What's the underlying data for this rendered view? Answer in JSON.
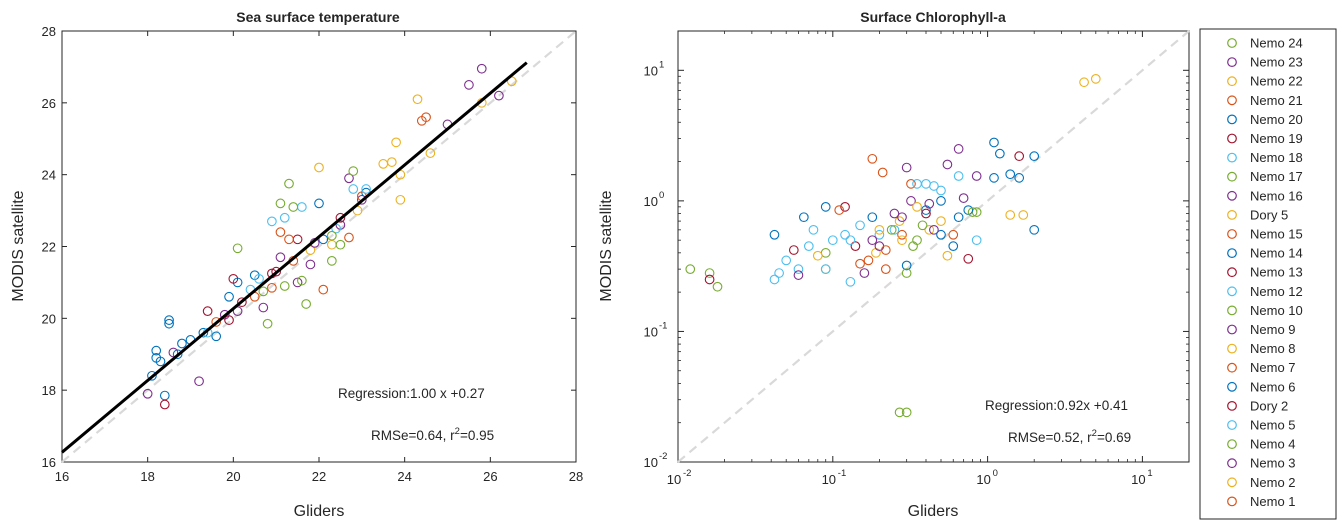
{
  "chart_data": [
    {
      "type": "scatter",
      "title": "Sea surface temperature",
      "xlabel": "Gliders",
      "ylabel": "MODIS satellite",
      "xlim": [
        16,
        28
      ],
      "ylim": [
        16,
        28
      ],
      "xticks": [
        "16",
        "18",
        "20",
        "22",
        "24",
        "26",
        "28"
      ],
      "yticks": [
        "16",
        "18",
        "20",
        "22",
        "24",
        "26",
        "28"
      ],
      "grid": false,
      "one_to_one_line": true,
      "regression_line": {
        "slope": 1.0,
        "intercept": 0.27,
        "x_range": [
          16,
          26.85
        ]
      },
      "annotations": [
        "Regression:1.00 x +0.27",
        "RMSe=0.64, r",
        "2",
        "=0.95"
      ],
      "points": [
        {
          "g": "Nemo 20",
          "x": 18.1,
          "y": 18.4
        },
        {
          "g": "Nemo 20",
          "x": 18.2,
          "y": 19.1
        },
        {
          "g": "Nemo 20",
          "x": 18.2,
          "y": 18.9
        },
        {
          "g": "Nemo 20",
          "x": 18.5,
          "y": 19.95
        },
        {
          "g": "Nemo 20",
          "x": 18.5,
          "y": 19.85
        },
        {
          "g": "Nemo 20",
          "x": 18.4,
          "y": 17.85
        },
        {
          "g": "Nemo 20",
          "x": 18.8,
          "y": 19.3
        },
        {
          "g": "Nemo 20",
          "x": 19.0,
          "y": 19.4
        },
        {
          "g": "Nemo 20",
          "x": 19.9,
          "y": 20.6
        },
        {
          "g": "Nemo 20",
          "x": 20.1,
          "y": 21.0
        },
        {
          "g": "Nemo 20",
          "x": 22.1,
          "y": 22.2
        },
        {
          "g": "Nemo 20",
          "x": 22.0,
          "y": 23.2
        },
        {
          "g": "Nemo 20",
          "x": 23.1,
          "y": 23.5
        },
        {
          "g": "Nemo 14",
          "x": 18.7,
          "y": 19.0
        },
        {
          "g": "Nemo 14",
          "x": 19.3,
          "y": 19.6
        },
        {
          "g": "Nemo 6",
          "x": 18.3,
          "y": 18.8
        },
        {
          "g": "Nemo 6",
          "x": 19.6,
          "y": 19.5
        },
        {
          "g": "Nemo 6",
          "x": 20.5,
          "y": 21.2
        },
        {
          "g": "Nemo 16",
          "x": 18.0,
          "y": 17.9
        },
        {
          "g": "Nemo 16",
          "x": 18.6,
          "y": 19.05
        },
        {
          "g": "Nemo 16",
          "x": 19.2,
          "y": 18.25
        },
        {
          "g": "Nemo 16",
          "x": 20.7,
          "y": 20.3
        },
        {
          "g": "Nemo 16",
          "x": 21.5,
          "y": 21.0
        },
        {
          "g": "Nemo 16",
          "x": 22.5,
          "y": 22.6
        },
        {
          "g": "Nemo 16",
          "x": 25.0,
          "y": 25.4
        },
        {
          "g": "Nemo 16",
          "x": 25.5,
          "y": 26.5
        },
        {
          "g": "Nemo 16",
          "x": 25.8,
          "y": 26.95
        },
        {
          "g": "Nemo 16",
          "x": 26.2,
          "y": 26.2
        },
        {
          "g": "Nemo 16",
          "x": 23.0,
          "y": 23.3
        },
        {
          "g": "Nemo 16",
          "x": 22.7,
          "y": 23.9
        },
        {
          "g": "Nemo 23",
          "x": 21.8,
          "y": 21.5
        },
        {
          "g": "Nemo 23",
          "x": 19.8,
          "y": 20.1
        },
        {
          "g": "Nemo 9",
          "x": 21.1,
          "y": 21.7
        },
        {
          "g": "Nemo 13",
          "x": 18.4,
          "y": 17.6
        },
        {
          "g": "Nemo 13",
          "x": 19.4,
          "y": 20.2
        },
        {
          "g": "Nemo 13",
          "x": 20.0,
          "y": 21.1
        },
        {
          "g": "Nemo 13",
          "x": 21.0,
          "y": 21.3
        },
        {
          "g": "Nemo 13",
          "x": 21.5,
          "y": 22.2
        },
        {
          "g": "Nemo 13",
          "x": 22.5,
          "y": 22.8
        },
        {
          "g": "Dory 2",
          "x": 20.2,
          "y": 20.45
        },
        {
          "g": "Nemo 19",
          "x": 19.9,
          "y": 19.95
        },
        {
          "g": "Nemo 19",
          "x": 20.9,
          "y": 21.25
        },
        {
          "g": "Nemo 21",
          "x": 19.6,
          "y": 19.9
        },
        {
          "g": "Nemo 21",
          "x": 20.5,
          "y": 20.6
        },
        {
          "g": "Nemo 21",
          "x": 21.3,
          "y": 22.2
        },
        {
          "g": "Nemo 21",
          "x": 22.1,
          "y": 20.8
        },
        {
          "g": "Nemo 21",
          "x": 24.5,
          "y": 25.6
        },
        {
          "g": "Nemo 15",
          "x": 21.4,
          "y": 21.6
        },
        {
          "g": "Nemo 15",
          "x": 22.7,
          "y": 22.25
        },
        {
          "g": "Nemo 15",
          "x": 24.4,
          "y": 25.5
        },
        {
          "g": "Nemo 7",
          "x": 20.9,
          "y": 20.85
        },
        {
          "g": "Nemo 7",
          "x": 23.0,
          "y": 23.4
        },
        {
          "g": "Nemo 1",
          "x": 21.1,
          "y": 22.4
        },
        {
          "g": "Nemo 22",
          "x": 22.0,
          "y": 24.2
        },
        {
          "g": "Nemo 22",
          "x": 23.5,
          "y": 24.3
        },
        {
          "g": "Nemo 22",
          "x": 24.3,
          "y": 26.1
        },
        {
          "g": "Nemo 22",
          "x": 25.8,
          "y": 26.0
        },
        {
          "g": "Nemo 22",
          "x": 23.9,
          "y": 23.3
        },
        {
          "g": "Nemo 22",
          "x": 23.8,
          "y": 24.9
        },
        {
          "g": "Nemo 22",
          "x": 24.6,
          "y": 24.6
        },
        {
          "g": "Nemo 8",
          "x": 23.7,
          "y": 24.35
        },
        {
          "g": "Nemo 8",
          "x": 22.3,
          "y": 22.05
        },
        {
          "g": "Nemo 8",
          "x": 26.5,
          "y": 26.6
        },
        {
          "g": "Nemo 2",
          "x": 21.8,
          "y": 21.9
        },
        {
          "g": "Nemo 2",
          "x": 23.9,
          "y": 24.0
        },
        {
          "g": "Dory 5",
          "x": 22.9,
          "y": 23.0
        },
        {
          "g": "Nemo 18",
          "x": 20.6,
          "y": 21.1
        },
        {
          "g": "Nemo 18",
          "x": 20.9,
          "y": 22.7
        },
        {
          "g": "Nemo 18",
          "x": 21.6,
          "y": 23.1
        },
        {
          "g": "Nemo 18",
          "x": 22.4,
          "y": 22.5
        },
        {
          "g": "Nemo 18",
          "x": 22.8,
          "y": 23.6
        },
        {
          "g": "Nemo 18",
          "x": 23.1,
          "y": 23.6
        },
        {
          "g": "Nemo 12",
          "x": 19.4,
          "y": 19.6
        },
        {
          "g": "Nemo 12",
          "x": 21.2,
          "y": 22.8
        },
        {
          "g": "Nemo 5",
          "x": 20.4,
          "y": 20.8
        },
        {
          "g": "Nemo 24",
          "x": 20.1,
          "y": 21.95
        },
        {
          "g": "Nemo 24",
          "x": 21.1,
          "y": 23.2
        },
        {
          "g": "Nemo 24",
          "x": 21.3,
          "y": 23.75
        },
        {
          "g": "Nemo 24",
          "x": 21.4,
          "y": 23.1
        },
        {
          "g": "Nemo 24",
          "x": 22.3,
          "y": 21.6
        },
        {
          "g": "Nemo 24",
          "x": 22.8,
          "y": 24.1
        },
        {
          "g": "Nemo 24",
          "x": 22.3,
          "y": 22.3
        },
        {
          "g": "Nemo 24",
          "x": 21.7,
          "y": 20.4
        },
        {
          "g": "Nemo 17",
          "x": 20.7,
          "y": 20.75
        },
        {
          "g": "Nemo 17",
          "x": 21.2,
          "y": 20.9
        },
        {
          "g": "Nemo 10",
          "x": 20.8,
          "y": 19.85
        },
        {
          "g": "Nemo 10",
          "x": 21.6,
          "y": 21.05
        },
        {
          "g": "Nemo 4",
          "x": 22.5,
          "y": 22.05
        },
        {
          "g": "Nemo 3",
          "x": 20.1,
          "y": 20.2
        },
        {
          "g": "Nemo 3",
          "x": 21.9,
          "y": 22.1
        }
      ]
    },
    {
      "type": "scatter",
      "title": "Surface Chlorophyll-a",
      "xlabel": "Gliders",
      "ylabel": "MODIS satellite",
      "xscale": "log",
      "yscale": "log",
      "xlim": [
        0.01,
        20
      ],
      "ylim": [
        0.01,
        20
      ],
      "xticks": [
        "10",
        "10",
        "10",
        "10"
      ],
      "xtick_exponents": [
        "-2",
        "-1",
        "0",
        "1"
      ],
      "yticks": [
        "10",
        "10",
        "10",
        "10"
      ],
      "ytick_exponents": [
        "-2",
        "-1",
        "0",
        "1"
      ],
      "grid": false,
      "one_to_one_line": true,
      "annotations": [
        "Regression:0.92x +0.41",
        "RMSe=0.52, r",
        "2",
        "=0.69"
      ],
      "points": [
        {
          "g": "Nemo 24",
          "x": 0.012,
          "y": 0.3
        },
        {
          "g": "Nemo 24",
          "x": 0.016,
          "y": 0.28
        },
        {
          "g": "Nemo 24",
          "x": 0.018,
          "y": 0.22
        },
        {
          "g": "Nemo 24",
          "x": 0.27,
          "y": 0.024
        },
        {
          "g": "Nemo 24",
          "x": 0.3,
          "y": 0.024
        },
        {
          "g": "Nemo 24",
          "x": 0.35,
          "y": 0.5
        },
        {
          "g": "Nemo 24",
          "x": 0.85,
          "y": 0.82
        },
        {
          "g": "Nemo 13",
          "x": 0.016,
          "y": 0.25
        },
        {
          "g": "Nemo 13",
          "x": 0.056,
          "y": 0.42
        },
        {
          "g": "Nemo 13",
          "x": 0.14,
          "y": 0.45
        },
        {
          "g": "Nemo 13",
          "x": 0.12,
          "y": 0.9
        },
        {
          "g": "Nemo 13",
          "x": 0.75,
          "y": 0.36
        },
        {
          "g": "Nemo 21",
          "x": 0.18,
          "y": 2.1
        },
        {
          "g": "Nemo 21",
          "x": 0.21,
          "y": 1.65
        },
        {
          "g": "Nemo 21",
          "x": 0.32,
          "y": 1.35
        },
        {
          "g": "Nemo 21",
          "x": 0.17,
          "y": 0.35
        },
        {
          "g": "Nemo 21",
          "x": 0.22,
          "y": 0.3
        },
        {
          "g": "Nemo 21",
          "x": 0.28,
          "y": 0.55
        },
        {
          "g": "Nemo 21",
          "x": 0.11,
          "y": 0.85
        },
        {
          "g": "Dory 2",
          "x": 1.6,
          "y": 2.2
        },
        {
          "g": "Nemo 22",
          "x": 4.2,
          "y": 8.1
        },
        {
          "g": "Nemo 22",
          "x": 5.0,
          "y": 8.6
        },
        {
          "g": "Nemo 22",
          "x": 1.4,
          "y": 0.78
        },
        {
          "g": "Nemo 22",
          "x": 1.7,
          "y": 0.78
        },
        {
          "g": "Nemo 22",
          "x": 0.55,
          "y": 0.38
        },
        {
          "g": "Nemo 22",
          "x": 0.09,
          "y": 0.3
        },
        {
          "g": "Nemo 22",
          "x": 0.19,
          "y": 0.4
        },
        {
          "g": "Nemo 22",
          "x": 0.27,
          "y": 0.7
        },
        {
          "g": "Nemo 22",
          "x": 0.42,
          "y": 0.6
        },
        {
          "g": "Nemo 20",
          "x": 0.042,
          "y": 0.55
        },
        {
          "g": "Nemo 20",
          "x": 0.065,
          "y": 0.75
        },
        {
          "g": "Nemo 20",
          "x": 0.09,
          "y": 0.9
        },
        {
          "g": "Nemo 20",
          "x": 0.18,
          "y": 0.75
        },
        {
          "g": "Nemo 20",
          "x": 0.4,
          "y": 0.85
        },
        {
          "g": "Nemo 20",
          "x": 1.1,
          "y": 2.8
        },
        {
          "g": "Nemo 20",
          "x": 1.2,
          "y": 2.3
        },
        {
          "g": "Nemo 20",
          "x": 1.1,
          "y": 1.5
        },
        {
          "g": "Nemo 20",
          "x": 1.4,
          "y": 1.6
        },
        {
          "g": "Nemo 20",
          "x": 1.6,
          "y": 1.5
        },
        {
          "g": "Nemo 20",
          "x": 2.0,
          "y": 2.2
        },
        {
          "g": "Nemo 20",
          "x": 2.0,
          "y": 0.6
        },
        {
          "g": "Nemo 20",
          "x": 0.3,
          "y": 0.32
        },
        {
          "g": "Nemo 20",
          "x": 0.5,
          "y": 1.0
        },
        {
          "g": "Nemo 20",
          "x": 0.75,
          "y": 0.85
        },
        {
          "g": "Nemo 20",
          "x": 0.6,
          "y": 0.45
        },
        {
          "g": "Nemo 18",
          "x": 0.042,
          "y": 0.25
        },
        {
          "g": "Nemo 18",
          "x": 0.045,
          "y": 0.28
        },
        {
          "g": "Nemo 18",
          "x": 0.05,
          "y": 0.35
        },
        {
          "g": "Nemo 18",
          "x": 0.06,
          "y": 0.3
        },
        {
          "g": "Nemo 18",
          "x": 0.07,
          "y": 0.45
        },
        {
          "g": "Nemo 18",
          "x": 0.075,
          "y": 0.6
        },
        {
          "g": "Nemo 18",
          "x": 0.1,
          "y": 0.5
        },
        {
          "g": "Nemo 18",
          "x": 0.13,
          "y": 0.5
        },
        {
          "g": "Nemo 18",
          "x": 0.15,
          "y": 0.65
        },
        {
          "g": "Nemo 18",
          "x": 0.2,
          "y": 0.55
        },
        {
          "g": "Nemo 18",
          "x": 0.25,
          "y": 0.6
        },
        {
          "g": "Nemo 18",
          "x": 0.35,
          "y": 1.35
        },
        {
          "g": "Nemo 18",
          "x": 0.4,
          "y": 1.35
        },
        {
          "g": "Nemo 18",
          "x": 0.45,
          "y": 1.3
        },
        {
          "g": "Nemo 18",
          "x": 0.5,
          "y": 1.2
        },
        {
          "g": "Nemo 18",
          "x": 0.65,
          "y": 1.55
        },
        {
          "g": "Nemo 18",
          "x": 0.85,
          "y": 0.5
        },
        {
          "g": "Nemo 18",
          "x": 0.13,
          "y": 0.24
        },
        {
          "g": "Nemo 16",
          "x": 0.3,
          "y": 1.8
        },
        {
          "g": "Nemo 16",
          "x": 0.55,
          "y": 1.9
        },
        {
          "g": "Nemo 16",
          "x": 0.65,
          "y": 2.5
        },
        {
          "g": "Nemo 16",
          "x": 0.7,
          "y": 1.05
        },
        {
          "g": "Nemo 16",
          "x": 0.85,
          "y": 1.55
        },
        {
          "g": "Nemo 16",
          "x": 0.25,
          "y": 0.8
        },
        {
          "g": "Nemo 16",
          "x": 0.2,
          "y": 0.45
        },
        {
          "g": "Nemo 16",
          "x": 0.16,
          "y": 0.28
        },
        {
          "g": "Nemo 16",
          "x": 0.06,
          "y": 0.27
        },
        {
          "g": "Nemo 16",
          "x": 0.45,
          "y": 0.6
        },
        {
          "g": "Nemo 16",
          "x": 0.32,
          "y": 1.0
        },
        {
          "g": "Nemo 17",
          "x": 0.09,
          "y": 0.4
        },
        {
          "g": "Nemo 17",
          "x": 0.3,
          "y": 0.28
        },
        {
          "g": "Nemo 17",
          "x": 0.8,
          "y": 0.82
        },
        {
          "g": "Nemo 17",
          "x": 0.24,
          "y": 0.6
        },
        {
          "g": "Nemo 2",
          "x": 0.08,
          "y": 0.38
        },
        {
          "g": "Nemo 2",
          "x": 0.2,
          "y": 0.6
        },
        {
          "g": "Nemo 2",
          "x": 0.35,
          "y": 0.9
        },
        {
          "g": "Dory 5",
          "x": 0.28,
          "y": 0.5
        },
        {
          "g": "Nemo 8",
          "x": 0.5,
          "y": 0.7
        },
        {
          "g": "Nemo 15",
          "x": 0.15,
          "y": 0.33
        },
        {
          "g": "Nemo 7",
          "x": 0.6,
          "y": 0.55
        },
        {
          "g": "Nemo 1",
          "x": 0.22,
          "y": 0.42
        },
        {
          "g": "Nemo 9",
          "x": 0.28,
          "y": 0.75
        },
        {
          "g": "Nemo 3",
          "x": 0.18,
          "y": 0.5
        },
        {
          "g": "Nemo 23",
          "x": 0.42,
          "y": 0.95
        },
        {
          "g": "Nemo 14",
          "x": 0.5,
          "y": 0.55
        },
        {
          "g": "Nemo 6",
          "x": 0.65,
          "y": 0.75
        },
        {
          "g": "Nemo 12",
          "x": 0.09,
          "y": 0.3
        },
        {
          "g": "Nemo 5",
          "x": 0.12,
          "y": 0.55
        },
        {
          "g": "Nemo 10",
          "x": 0.38,
          "y": 0.65
        },
        {
          "g": "Nemo 4",
          "x": 0.33,
          "y": 0.45
        },
        {
          "g": "Nemo 19",
          "x": 0.4,
          "y": 0.8
        }
      ]
    }
  ],
  "legend": {
    "placement": "right",
    "items": [
      {
        "label": "Nemo 24",
        "color": "#77ac30"
      },
      {
        "label": "Nemo 23",
        "color": "#7e2f8e"
      },
      {
        "label": "Nemo 22",
        "color": "#edb120"
      },
      {
        "label": "Nemo 21",
        "color": "#d95319"
      },
      {
        "label": "Nemo 20",
        "color": "#0072bd"
      },
      {
        "label": "Nemo 19",
        "color": "#a2142f"
      },
      {
        "label": "Nemo 18",
        "color": "#4dbeee"
      },
      {
        "label": "Nemo 17",
        "color": "#77ac30"
      },
      {
        "label": "Nemo 16",
        "color": "#7e2f8e"
      },
      {
        "label": "Dory 5",
        "color": "#edb120"
      },
      {
        "label": "Nemo 15",
        "color": "#d95319"
      },
      {
        "label": "Nemo 14",
        "color": "#0072bd"
      },
      {
        "label": "Nemo 13",
        "color": "#a2142f"
      },
      {
        "label": "Nemo 12",
        "color": "#4dbeee"
      },
      {
        "label": "Nemo 10",
        "color": "#77ac30"
      },
      {
        "label": "Nemo 9",
        "color": "#7e2f8e"
      },
      {
        "label": "Nemo 8",
        "color": "#edb120"
      },
      {
        "label": "Nemo 7",
        "color": "#d95319"
      },
      {
        "label": "Nemo 6",
        "color": "#0072bd"
      },
      {
        "label": "Dory 2",
        "color": "#a2142f"
      },
      {
        "label": "Nemo 5",
        "color": "#4dbeee"
      },
      {
        "label": "Nemo 4",
        "color": "#77ac30"
      },
      {
        "label": "Nemo 3",
        "color": "#7e2f8e"
      },
      {
        "label": "Nemo 2",
        "color": "#edb120"
      },
      {
        "label": "Nemo 1",
        "color": "#d95319"
      }
    ]
  },
  "colors": {
    "axis": "#262626",
    "one_to_one_line": "#d9d9d9",
    "regression_line": "#000000",
    "background": "#ffffff"
  }
}
